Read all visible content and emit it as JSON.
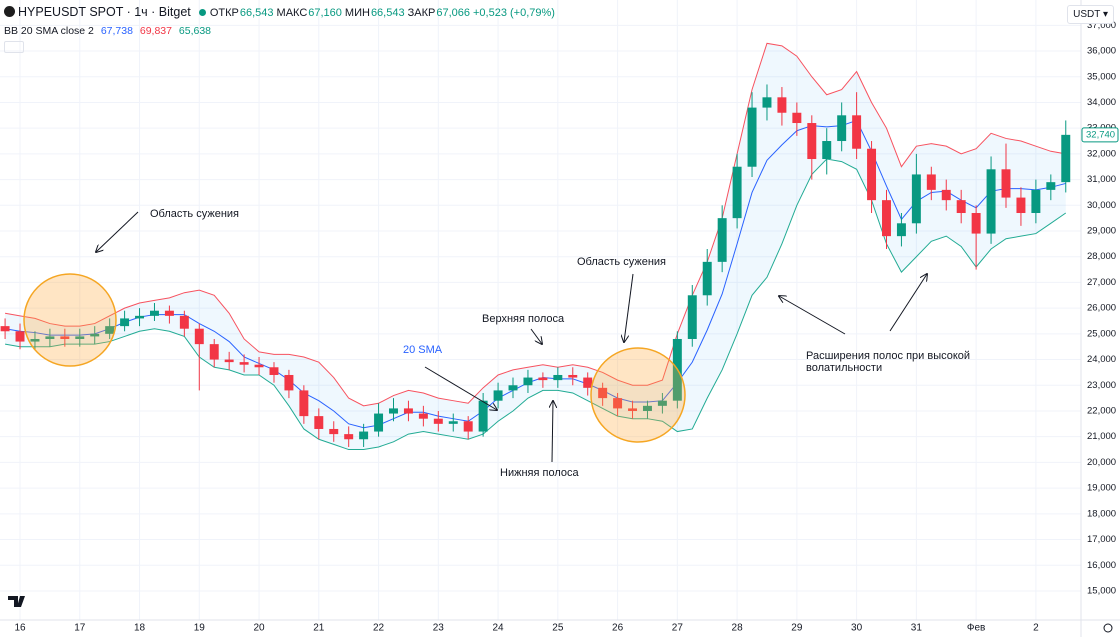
{
  "header": {
    "symbol": "HYPEUSDT SPOT · 1ч · Bitget",
    "ohlc": [
      {
        "label": "ОТКР",
        "value": "66,543"
      },
      {
        "label": "МАКС",
        "value": "67,160"
      },
      {
        "label": "МИН",
        "value": "66,543"
      },
      {
        "label": "ЗАКР",
        "value": "67,066"
      }
    ],
    "change": "+0,523 (+0,79%)",
    "indicator": {
      "name": "BB 20 SMA close 2",
      "values": [
        "67,738",
        "69,837",
        "65,638"
      ]
    },
    "currency": "USDT"
  },
  "chart_data": {
    "type": "candlestick",
    "x": [
      15.75,
      16,
      16.25,
      16.5,
      16.75,
      17,
      17.25,
      17.5,
      17.75,
      18,
      18.25,
      18.5,
      18.75,
      19,
      19.25,
      19.5,
      19.75,
      20,
      20.25,
      20.5,
      20.75,
      21,
      21.25,
      21.5,
      21.75,
      22,
      22.25,
      22.5,
      22.75,
      23,
      23.25,
      23.5,
      23.75,
      24,
      24.25,
      24.5,
      24.75,
      25,
      25.25,
      25.5,
      25.75,
      26,
      26.25,
      26.5,
      26.75,
      27,
      27.25,
      27.5,
      27.75,
      28,
      28.25,
      28.5,
      28.75,
      29,
      29.25,
      29.5,
      29.75,
      30,
      30.25,
      30.5,
      30.75,
      31,
      31.25,
      31.5,
      31.75,
      32,
      32.25,
      32.5,
      32.75,
      33,
      33.25,
      33.5
    ],
    "open": [
      25300,
      25100,
      24700,
      24800,
      24900,
      24800,
      24900,
      25000,
      25300,
      25600,
      25700,
      25900,
      25700,
      25200,
      24600,
      24000,
      23900,
      23800,
      23700,
      23400,
      22800,
      21800,
      21300,
      21100,
      20900,
      21200,
      21900,
      22100,
      21900,
      21700,
      21500,
      21600,
      21200,
      22400,
      22800,
      23000,
      23300,
      23200,
      23400,
      23300,
      22900,
      22500,
      22100,
      22000,
      22200,
      22400,
      24800,
      26500,
      27800,
      29500,
      31500,
      33800,
      34200,
      33600,
      33200,
      31800,
      32500,
      33500,
      32200,
      30200,
      28800,
      29300,
      31200,
      30600,
      30200,
      29700,
      28900,
      31400,
      30300,
      29700,
      30600,
      30900
    ],
    "high": [
      25600,
      25400,
      25100,
      25200,
      25200,
      25200,
      25300,
      25600,
      25900,
      26000,
      26200,
      26100,
      25900,
      25400,
      24800,
      24300,
      24200,
      24100,
      23900,
      23600,
      23000,
      22100,
      21600,
      21400,
      21500,
      22300,
      22500,
      22400,
      22200,
      22000,
      21900,
      21800,
      22700,
      23100,
      23300,
      23600,
      23500,
      23700,
      23700,
      23500,
      23100,
      22700,
      22400,
      22400,
      22700,
      25100,
      26900,
      28300,
      30000,
      32000,
      34400,
      34700,
      34600,
      34000,
      33500,
      33000,
      34000,
      34400,
      32500,
      30600,
      29700,
      32000,
      31500,
      31000,
      30600,
      30000,
      31900,
      32400,
      30700,
      31000,
      31200,
      33300
    ],
    "low": [
      24800,
      24400,
      24400,
      24500,
      24500,
      24500,
      24600,
      24800,
      25100,
      25300,
      25500,
      25400,
      24900,
      22800,
      23700,
      23600,
      23500,
      23400,
      23100,
      22500,
      21500,
      20900,
      20800,
      20600,
      20600,
      21000,
      21600,
      21600,
      21400,
      21200,
      21200,
      20900,
      21000,
      22100,
      22500,
      22700,
      22900,
      22900,
      23000,
      22600,
      22200,
      21800,
      21700,
      21700,
      21900,
      22100,
      24500,
      26100,
      27400,
      29100,
      31100,
      33300,
      33100,
      32700,
      31000,
      31200,
      32100,
      31800,
      29700,
      28300,
      28400,
      28900,
      30200,
      29800,
      29300,
      27500,
      28500,
      29900,
      29200,
      29300,
      30200,
      30500
    ],
    "close": [
      25100,
      24700,
      24800,
      24900,
      24800,
      24900,
      25000,
      25300,
      25600,
      25700,
      25900,
      25700,
      25200,
      24600,
      24000,
      23900,
      23800,
      23700,
      23400,
      22800,
      21800,
      21300,
      21100,
      20900,
      21200,
      21900,
      22100,
      21900,
      21700,
      21500,
      21600,
      21200,
      22400,
      22800,
      23000,
      23300,
      23200,
      23400,
      23300,
      22900,
      22500,
      22100,
      22000,
      22200,
      22400,
      24800,
      26500,
      27800,
      29500,
      31500,
      33800,
      34200,
      33600,
      33200,
      31800,
      32500,
      33500,
      32200,
      30200,
      28800,
      29300,
      31200,
      30600,
      30200,
      29700,
      28900,
      31400,
      30300,
      29700,
      30600,
      30900,
      32740
    ],
    "up_color": "#089981",
    "down_color": "#f23645",
    "bands": {
      "upper": [
        25800,
        25700,
        25600,
        25400,
        25300,
        25300,
        25400,
        25700,
        26000,
        26200,
        26300,
        26400,
        26600,
        26700,
        26500,
        25800,
        24800,
        24300,
        24200,
        24200,
        24100,
        23900,
        23300,
        22500,
        22200,
        22300,
        22600,
        22800,
        22700,
        22500,
        22400,
        22300,
        22900,
        23400,
        23600,
        23700,
        23800,
        23700,
        23800,
        23700,
        23500,
        23200,
        23000,
        23000,
        23200,
        25000,
        26500,
        27800,
        29500,
        32000,
        34500,
        36300,
        36200,
        35800,
        35000,
        34300,
        34500,
        35200,
        34000,
        33000,
        31500,
        32300,
        32400,
        32300,
        32000,
        32200,
        32800,
        32600,
        32500,
        32300,
        32100,
        32000
      ],
      "middle": [
        25200,
        25100,
        25050,
        24950,
        24950,
        24950,
        25000,
        25200,
        25450,
        25650,
        25750,
        25750,
        25750,
        25400,
        25100,
        24700,
        24100,
        23850,
        23600,
        23200,
        22700,
        22400,
        22000,
        21500,
        21350,
        21450,
        21700,
        21950,
        21950,
        21800,
        21700,
        21600,
        22000,
        22500,
        22800,
        23100,
        23300,
        23250,
        23250,
        23050,
        22800,
        22500,
        22350,
        22350,
        22400,
        23100,
        23900,
        25150,
        26550,
        28500,
        30500,
        31750,
        32350,
        32900,
        33100,
        33050,
        33100,
        33300,
        32100,
        30750,
        29450,
        30150,
        30500,
        30550,
        30200,
        29900,
        30550,
        30650,
        30650,
        30600,
        30700,
        30850
      ],
      "lower": [
        24600,
        24500,
        24500,
        24500,
        24600,
        24600,
        24600,
        24700,
        24900,
        25100,
        25200,
        25100,
        24900,
        24100,
        23700,
        23600,
        23400,
        23400,
        23000,
        22200,
        21300,
        20900,
        20700,
        20500,
        20500,
        20600,
        20800,
        21100,
        21200,
        21100,
        21000,
        20900,
        21100,
        21600,
        22000,
        22500,
        22800,
        22800,
        22700,
        22400,
        22100,
        21800,
        21700,
        21700,
        21600,
        21200,
        21300,
        22500,
        23600,
        25000,
        26500,
        27200,
        28500,
        30000,
        31200,
        31800,
        31700,
        31400,
        30200,
        28500,
        27400,
        28000,
        28600,
        28800,
        28400,
        27600,
        28300,
        28700,
        28800,
        28900,
        29300,
        29700
      ],
      "upper_color": "#f7525f",
      "middle_color": "#2962ff",
      "lower_color": "#22ab94"
    },
    "xlim": [
      15.665,
      33.755
    ],
    "xticks": [
      16,
      17,
      18,
      19,
      20,
      21,
      22,
      23,
      24,
      25,
      26,
      27,
      28,
      29,
      30,
      31,
      {
        "value": 32,
        "label": "Фев"
      },
      {
        "value": 33,
        "label": "2"
      }
    ],
    "ylim": [
      13870,
      37985
    ],
    "yticks": [
      {
        "value": 15000,
        "label": "15,000"
      },
      {
        "value": 16000,
        "label": "16,000"
      },
      {
        "value": 17000,
        "label": "17,000"
      },
      {
        "value": 18000,
        "label": "18,000"
      },
      {
        "value": 19000,
        "label": "19,000"
      },
      {
        "value": 20000,
        "label": "20,000"
      },
      {
        "value": 21000,
        "label": "21,000"
      },
      {
        "value": 22000,
        "label": "22,000"
      },
      {
        "value": 23000,
        "label": "23,000"
      },
      {
        "value": 24000,
        "label": "24,000"
      },
      {
        "value": 25000,
        "label": "25,000"
      },
      {
        "value": 26000,
        "label": "26,000"
      },
      {
        "value": 27000,
        "label": "27,000"
      },
      {
        "value": 28000,
        "label": "28,000"
      },
      {
        "value": 29000,
        "label": "29,000"
      },
      {
        "value": 30000,
        "label": "30,000"
      },
      {
        "value": 31000,
        "label": "31,000"
      },
      {
        "value": 32000,
        "label": "32,000"
      },
      {
        "value": 33000,
        "label": "33,000"
      },
      {
        "value": 34000,
        "label": "34,000"
      },
      {
        "value": 35000,
        "label": "35,000"
      },
      {
        "value": 36000,
        "label": "36,000"
      },
      {
        "value": 37000,
        "label": "37,000"
      }
    ],
    "grid": true,
    "price_label": "32,740",
    "annotations": [
      "Область сужения",
      "20 SMA",
      "Верхняя полоса",
      "Нижняя полоса",
      "Область сужения",
      [
        "Расширения полос при высокой",
        "волатильности"
      ]
    ]
  }
}
